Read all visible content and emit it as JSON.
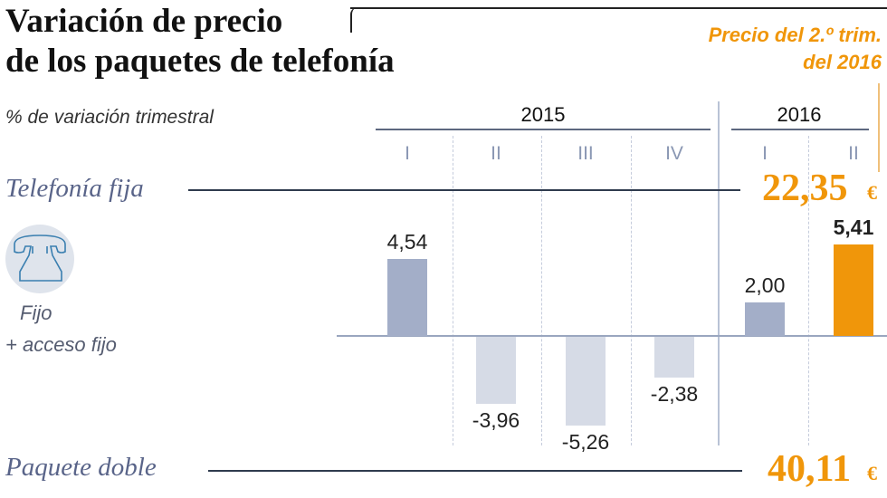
{
  "title": [
    "Variación de precio",
    "de los paquetes de telefonía"
  ],
  "price_note": [
    "Precio del 2.º trim.",
    "del 2016"
  ],
  "chart_data": {
    "type": "bar",
    "subtitle": "% de variación trimestral",
    "years": [
      {
        "label": "2015",
        "quarters": [
          "I",
          "II",
          "III",
          "IV"
        ]
      },
      {
        "label": "2016",
        "quarters": [
          "I",
          "II"
        ]
      }
    ],
    "categories": [
      "2015 I",
      "2015 II",
      "2015 III",
      "2015 IV",
      "2016 I",
      "2016 II"
    ],
    "values": [
      4.54,
      -3.96,
      -5.26,
      -2.38,
      2.0,
      5.41
    ],
    "value_labels": [
      "4,54",
      "-3,96",
      "-5,26",
      "-2,38",
      "2,00",
      "5,41"
    ],
    "highlight_index": 5,
    "colors": {
      "positive": "#a3aec8",
      "negative": "#d6dbe6",
      "highlight": "#f0960a"
    }
  },
  "series_top": {
    "label": "Telefonía fija",
    "price": "22,35",
    "currency": "€"
  },
  "series_bottom": {
    "label": "Paquete doble",
    "price": "40,11",
    "currency": "€"
  },
  "legend": {
    "icon": "telephone-icon",
    "line1": "Fijo",
    "line2": "+ acceso fijo"
  }
}
